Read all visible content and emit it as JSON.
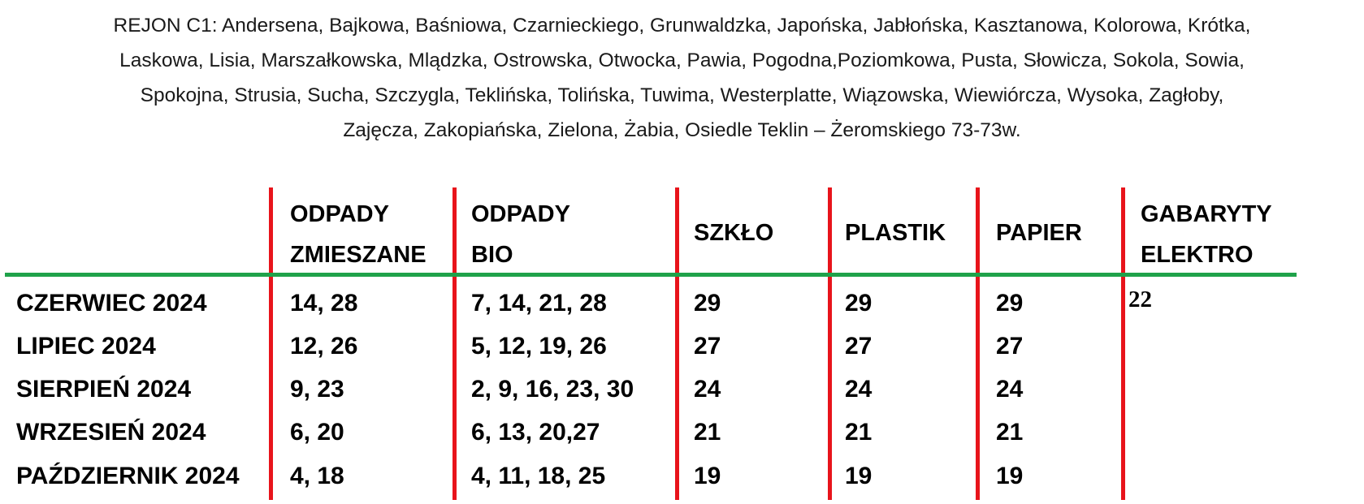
{
  "header": {
    "lines": [
      "REJON C1: Andersena, Bajkowa, Baśniowa, Czarnieckiego, Grunwaldzka, Japońska, Jabłońska, Kasztanowa, Kolorowa, Krótka,",
      "Laskowa, Lisia, Marszałkowska, Mlądzka, Ostrowska, Otwocka, Pawia, Pogodna,Poziomkowa,  Pusta, Słowicza, Sokola, Sowia,",
      "Spokojna, Strusia, Sucha, Szczygla, Teklińska, Tolińska, Tuwima, Westerplatte, Wiązowska, Wiewiórcza, Wysoka, Zagłoby,",
      "Zajęcza, Zakopiańska, Zielona, Żabia, Osiedle Teklin – Żeromskiego 73-73w."
    ]
  },
  "table": {
    "columns": [
      {
        "line1": "ODPADY",
        "line2": "ZMIESZANE"
      },
      {
        "line1": "ODPADY",
        "line2": "BIO"
      },
      {
        "line1": "SZKŁO"
      },
      {
        "line1": "PLASTIK"
      },
      {
        "line1": "PAPIER"
      },
      {
        "line1": "GABARYTY",
        "line2": "ELEKTRO"
      }
    ],
    "rows": [
      {
        "month": "CZERWIEC 2024",
        "mixed": "14, 28",
        "bio": "7, 14, 21, 28",
        "glass": "29",
        "plastic": "29",
        "paper": "29",
        "bulky": "22"
      },
      {
        "month": "LIPIEC 2024",
        "mixed": "12, 26",
        "bio": "5, 12, 19, 26",
        "glass": "27",
        "plastic": "27",
        "paper": "27",
        "bulky": ""
      },
      {
        "month": "SIERPIEŃ 2024",
        "mixed": "9, 23",
        "bio": "2, 9, 16, 23, 30",
        "glass": "24",
        "plastic": "24",
        "paper": "24",
        "bulky": ""
      },
      {
        "month": "WRZESIEŃ 2024",
        "mixed": "6, 20",
        "bio": "6, 13, 20,27",
        "glass": "21",
        "plastic": "21",
        "paper": "21",
        "bulky": ""
      },
      {
        "month": "PAŹDZIERNIK 2024",
        "mixed": "4, 18",
        "bio": "4, 11, 18, 25",
        "glass": "19",
        "plastic": "19",
        "paper": "19",
        "bulky": ""
      }
    ]
  },
  "colors": {
    "column_divider": "#e8141b",
    "header_rule": "#1fa24a",
    "text": "#000000"
  }
}
